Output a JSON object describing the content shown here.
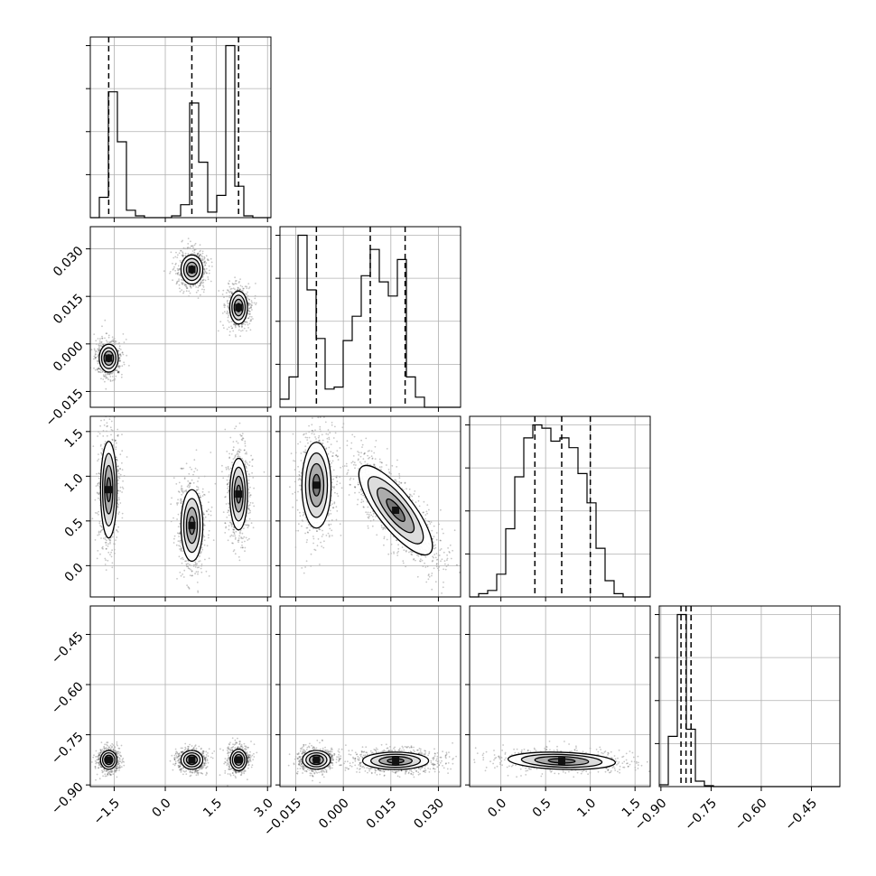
{
  "chart_data": {
    "type": "corner",
    "title": "",
    "parameters": [
      {
        "ticks": [
          -1.5,
          0.0,
          1.5,
          3.0
        ],
        "tick_labels": [
          "−1.5",
          "0.0",
          "1.5",
          "3.0"
        ],
        "range": [
          -2.2,
          3.1
        ]
      },
      {
        "ticks": [
          -0.015,
          0.0,
          0.015,
          0.03
        ],
        "tick_labels": [
          "−0.015",
          "0.000",
          "0.015",
          "0.030"
        ],
        "range": [
          -0.02,
          0.037
        ]
      },
      {
        "ticks": [
          0.0,
          0.5,
          1.0,
          1.5
        ],
        "tick_labels": [
          "0.0",
          "0.5",
          "1.0",
          "1.5"
        ],
        "range": [
          -0.35,
          1.67
        ]
      },
      {
        "ticks": [
          -0.9,
          -0.75,
          -0.6,
          -0.45
        ],
        "tick_labels": [
          "−0.90",
          "−0.75",
          "−0.60",
          "−0.45"
        ],
        "range": [
          -0.905,
          -0.365
        ]
      }
    ],
    "histograms": [
      {
        "bins": [
          -2.2,
          -1.935,
          -1.67,
          -1.405,
          -1.14,
          -0.875,
          -0.61,
          -0.345,
          -0.08,
          0.185,
          0.45,
          0.715,
          0.98,
          1.245,
          1.51,
          1.775,
          2.04,
          2.305,
          2.57,
          2.835,
          3.1
        ],
        "counts": [
          0,
          0.11,
          0.68,
          0.41,
          0.04,
          0.01,
          0,
          0,
          0,
          0.01,
          0.07,
          0.62,
          0.3,
          0.03,
          0.12,
          0.93,
          0.17,
          0.01,
          0,
          0
        ],
        "quantiles": [
          -1.66,
          0.78,
          2.15
        ]
      },
      {
        "bins": [
          -0.02,
          -0.01715,
          -0.0143,
          -0.01145,
          -0.0086,
          -0.00575,
          -0.0029,
          -5e-05,
          0.0028,
          0.00565,
          0.0085,
          0.01135,
          0.0142,
          0.01705,
          0.0199,
          0.02275,
          0.0256,
          0.02845,
          0.0313,
          0.03415,
          0.037
        ],
        "counts": [
          0.04,
          0.15,
          0.85,
          0.58,
          0.34,
          0.09,
          0.1,
          0.33,
          0.45,
          0.65,
          0.78,
          0.62,
          0.55,
          0.73,
          0.15,
          0.05,
          0,
          0,
          0,
          0
        ],
        "quantiles": [
          -0.0085,
          0.0085,
          0.0195
        ]
      },
      {
        "bins": [
          -0.35,
          -0.249,
          -0.148,
          -0.047,
          0.054,
          0.155,
          0.256,
          0.357,
          0.458,
          0.559,
          0.66,
          0.761,
          0.862,
          0.963,
          1.064,
          1.165,
          1.266,
          1.367,
          1.468,
          1.569,
          1.67
        ],
        "counts": [
          0,
          0.01,
          0.02,
          0.07,
          0.21,
          0.37,
          0.49,
          0.53,
          0.52,
          0.48,
          0.49,
          0.46,
          0.38,
          0.29,
          0.15,
          0.05,
          0.01,
          0,
          0,
          0
        ],
        "quantiles": [
          0.38,
          0.68,
          1.0
        ]
      },
      {
        "bins": [
          -0.905,
          -0.878,
          -0.851,
          -0.824,
          -0.797,
          -0.77,
          -0.743,
          -0.716,
          -0.689,
          -0.662,
          -0.635,
          -0.608,
          -0.581,
          -0.554,
          -0.527,
          -0.5,
          -0.473,
          -0.446,
          -0.419,
          -0.392,
          -0.365
        ],
        "counts": [
          0.01,
          0.28,
          0.96,
          0.32,
          0.03,
          0.005,
          0,
          0,
          0,
          0,
          0,
          0,
          0,
          0,
          0,
          0,
          0,
          0,
          0,
          0
        ],
        "quantiles": [
          -0.84,
          -0.825,
          -0.81
        ]
      }
    ],
    "pairs": [
      {
        "x": 0,
        "y": 1,
        "clusters": [
          {
            "mx": -1.66,
            "my": -0.0045,
            "sx": 0.14,
            "sy": 0.0022,
            "rho": 0,
            "w": 1
          },
          {
            "mx": 0.78,
            "my": 0.0235,
            "sx": 0.16,
            "sy": 0.0023,
            "rho": 0,
            "w": 1
          },
          {
            "mx": 2.15,
            "my": 0.0115,
            "sx": 0.13,
            "sy": 0.0026,
            "rho": 0,
            "w": 1
          }
        ]
      },
      {
        "x": 0,
        "y": 2,
        "clusters": [
          {
            "mx": -1.66,
            "my": 0.85,
            "sx": 0.12,
            "sy": 0.27,
            "rho": 0,
            "w": 1
          },
          {
            "mx": 0.78,
            "my": 0.45,
            "sx": 0.16,
            "sy": 0.2,
            "rho": 0,
            "w": 1
          },
          {
            "mx": 2.15,
            "my": 0.8,
            "sx": 0.13,
            "sy": 0.2,
            "rho": 0,
            "w": 1
          }
        ]
      },
      {
        "x": 1,
        "y": 2,
        "clusters": [
          {
            "mx": -0.0085,
            "my": 0.9,
            "sx": 0.0023,
            "sy": 0.24,
            "rho": 0,
            "w": 1
          },
          {
            "mx": 0.0165,
            "my": 0.62,
            "sx": 0.0058,
            "sy": 0.25,
            "rho": -0.8,
            "w": 1.5
          }
        ]
      },
      {
        "x": 0,
        "y": 3,
        "clusters": [
          {
            "mx": -1.66,
            "my": -0.825,
            "sx": 0.12,
            "sy": 0.014,
            "rho": 0,
            "w": 1
          },
          {
            "mx": 0.78,
            "my": -0.825,
            "sx": 0.16,
            "sy": 0.014,
            "rho": 0,
            "w": 1
          },
          {
            "mx": 2.15,
            "my": -0.825,
            "sx": 0.12,
            "sy": 0.016,
            "rho": 0,
            "w": 1
          }
        ]
      },
      {
        "x": 1,
        "y": 3,
        "clusters": [
          {
            "mx": -0.0085,
            "my": -0.825,
            "sx": 0.0022,
            "sy": 0.014,
            "rho": 0,
            "w": 1
          },
          {
            "mx": 0.0165,
            "my": -0.828,
            "sx": 0.0052,
            "sy": 0.013,
            "rho": 0,
            "w": 1.5
          }
        ]
      },
      {
        "x": 2,
        "y": 3,
        "clusters": [
          {
            "mx": 0.68,
            "my": -0.828,
            "sx": 0.3,
            "sy": 0.013,
            "rho": -0.2,
            "w": 1
          }
        ]
      }
    ]
  }
}
